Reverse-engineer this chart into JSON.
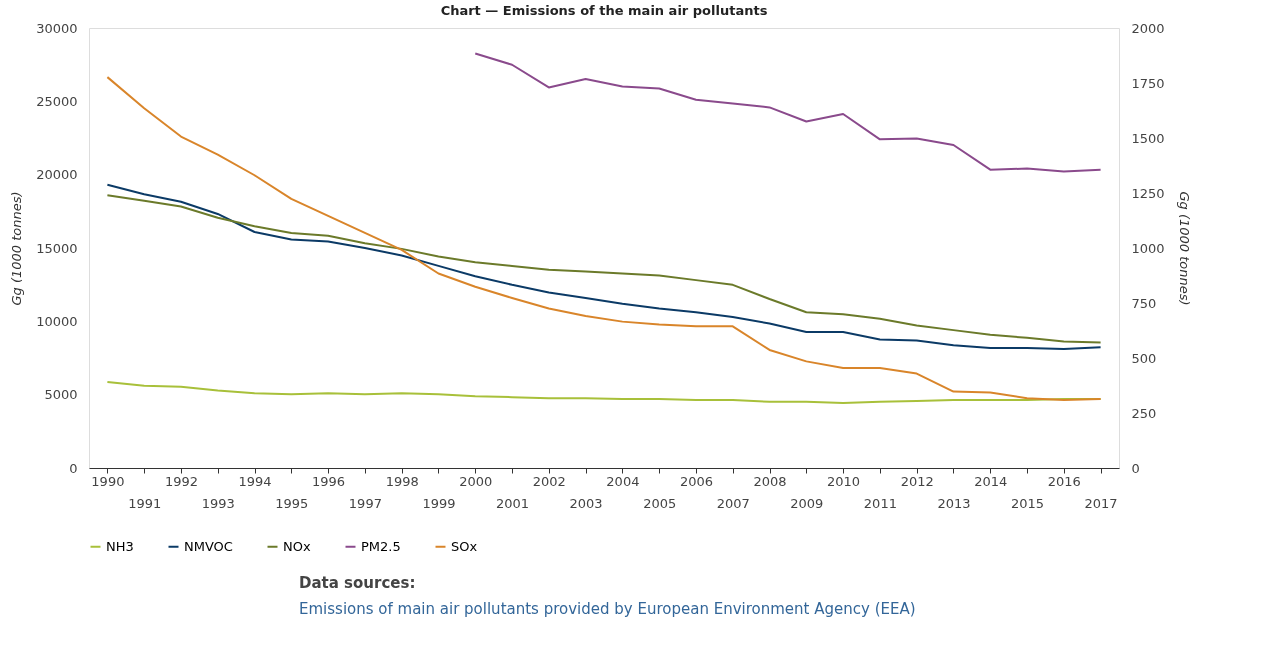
{
  "chart_data": {
    "type": "line",
    "title": "Chart — Emissions of the main air pollutants",
    "ylabel": "Gg (1000 tonnes)",
    "y2label": "Gg (1000 tonnes)",
    "categories": [
      "1990",
      "1991",
      "1992",
      "1993",
      "1994",
      "1995",
      "1996",
      "1997",
      "1998",
      "1999",
      "2000",
      "2001",
      "2002",
      "2003",
      "2004",
      "2005",
      "2006",
      "2007",
      "2008",
      "2009",
      "2010",
      "2011",
      "2012",
      "2013",
      "2014",
      "2015",
      "2016",
      "2017"
    ],
    "ylim": [
      0,
      30000
    ],
    "yticks": [
      0,
      5000,
      10000,
      15000,
      20000,
      25000,
      30000
    ],
    "y2lim": [
      0,
      2000
    ],
    "y2ticks": [
      0,
      250,
      500,
      750,
      1000,
      1250,
      1500,
      1750,
      2000
    ],
    "grid": false,
    "legend": "bottom",
    "marker": "none",
    "line_style": "solid",
    "series": [
      {
        "name": "NH3",
        "color": "#a8c03a",
        "values": [
          5860,
          5600,
          5540,
          5280,
          5090,
          5020,
          5090,
          5020,
          5090,
          5020,
          4890,
          4830,
          4760,
          4760,
          4700,
          4700,
          4640,
          4640,
          4510,
          4510,
          4440,
          4510,
          4570,
          4640,
          4640,
          4640,
          4700,
          4700
        ]
      },
      {
        "name": "NMVOC",
        "color": "#0b3a66",
        "values": [
          19310,
          18670,
          18150,
          17320,
          16090,
          15580,
          15450,
          15000,
          14490,
          13780,
          13070,
          12490,
          11970,
          11590,
          11200,
          10880,
          10620,
          10300,
          9850,
          9270,
          9270,
          8760,
          8690,
          8370,
          8180,
          8180,
          8110,
          8240
        ]
      },
      {
        "name": "NOx",
        "color": "#6b7a2a",
        "values": [
          18600,
          18220,
          17830,
          17060,
          16480,
          16030,
          15840,
          15320,
          14940,
          14420,
          14030,
          13780,
          13520,
          13390,
          13260,
          13130,
          12810,
          12490,
          11520,
          10620,
          10490,
          10170,
          9720,
          9400,
          9080,
          8880,
          8630,
          8560
        ]
      },
      {
        "name": "PM2.5",
        "color": "#8a4a8c",
        "axis": "y2",
        "values": [
          null,
          null,
          null,
          null,
          null,
          null,
          null,
          null,
          null,
          null,
          1884,
          1833,
          1730,
          1768,
          1734,
          1725,
          1674,
          1657,
          1639,
          1575,
          1609,
          1494,
          1498,
          1468,
          1356,
          1361,
          1348,
          1356
        ]
      },
      {
        "name": "SOx",
        "color": "#d9852a",
        "values": [
          26650,
          24530,
          22600,
          21370,
          19960,
          18350,
          17190,
          16030,
          14870,
          13260,
          12360,
          11590,
          10880,
          10360,
          9980,
          9790,
          9660,
          9660,
          8050,
          7270,
          6820,
          6820,
          6440,
          5210,
          5150,
          4760,
          4640,
          4700
        ]
      }
    ],
    "annotations": [
      "Data sources:",
      "Emissions of main air pollutants provided by European Environment Agency (EEA)"
    ]
  }
}
